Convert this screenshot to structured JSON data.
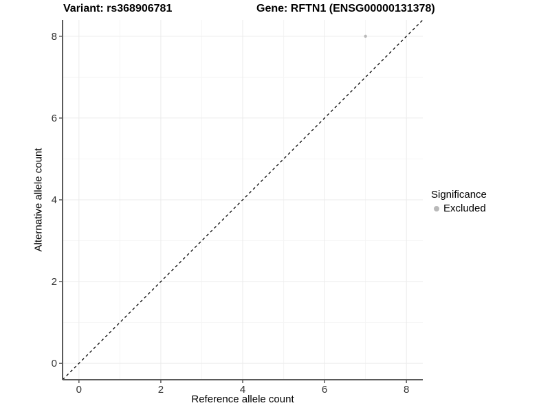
{
  "header": {
    "variant_title": "Variant: rs368906781",
    "gene_title": "Gene: RFTN1 (ENSG00000131378)"
  },
  "axes": {
    "x_label": "Reference allele count",
    "y_label": "Alternative allele count"
  },
  "legend": {
    "title": "Significance",
    "items": [
      {
        "label": "Excluded",
        "color": "#b9b9b9"
      }
    ]
  },
  "chart_data": {
    "type": "scatter",
    "title": "Variant: rs368906781   Gene: RFTN1 (ENSG00000131378)",
    "xlabel": "Reference allele count",
    "ylabel": "Alternative allele count",
    "xlim": [
      -0.4,
      8.4
    ],
    "ylim": [
      -0.4,
      8.4
    ],
    "x_major_ticks": [
      0,
      2,
      4,
      6,
      8
    ],
    "y_major_ticks": [
      0,
      2,
      4,
      6,
      8
    ],
    "x_minor_ticks": [
      1,
      3,
      5,
      7
    ],
    "y_minor_ticks": [
      1,
      3,
      5,
      7
    ],
    "grid": true,
    "legend_position": "right",
    "series": [
      {
        "name": "Excluded",
        "color": "#b9b9b9",
        "points": [
          {
            "x": 7,
            "y": 8
          }
        ],
        "point_radius": 2.2
      }
    ],
    "reference_line": {
      "type": "identity",
      "style": "dashed",
      "from": [
        -0.4,
        -0.4
      ],
      "to": [
        8.4,
        8.4
      ],
      "color": "#000000"
    }
  },
  "colors": {
    "background": "#ffffff",
    "grid_major": "#ebebeb",
    "grid_minor": "#f5f5f5",
    "axis_line": "#5a5a5a",
    "tick_text": "#333333",
    "point": "#b9b9b9"
  }
}
